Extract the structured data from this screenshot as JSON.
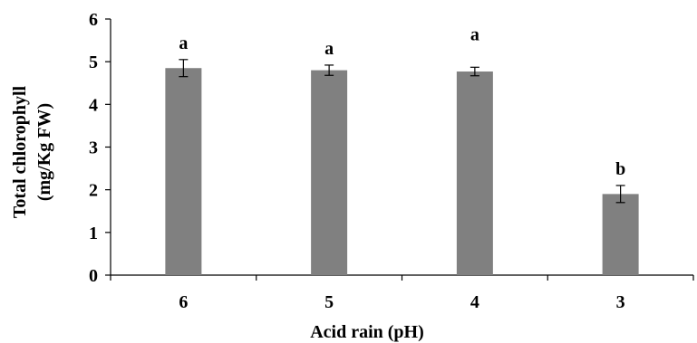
{
  "chart_data": {
    "type": "bar",
    "categories": [
      "6",
      "5",
      "4",
      "3"
    ],
    "values": [
      4.85,
      4.8,
      4.77,
      1.9
    ],
    "errors": [
      0.2,
      0.12,
      0.1,
      0.2
    ],
    "significance_labels": [
      "a",
      "a",
      "a",
      "b"
    ],
    "xlabel": "Acid rain (pH)",
    "ylabel_line1": "Total chlorophyll",
    "ylabel_line2": "(mg/Kg FW)",
    "ylim": [
      0,
      6
    ],
    "yticks": [
      "0",
      "1",
      "2",
      "3",
      "4",
      "5",
      "6"
    ],
    "bar_color": "#808080",
    "grid": false,
    "legend": "none"
  }
}
